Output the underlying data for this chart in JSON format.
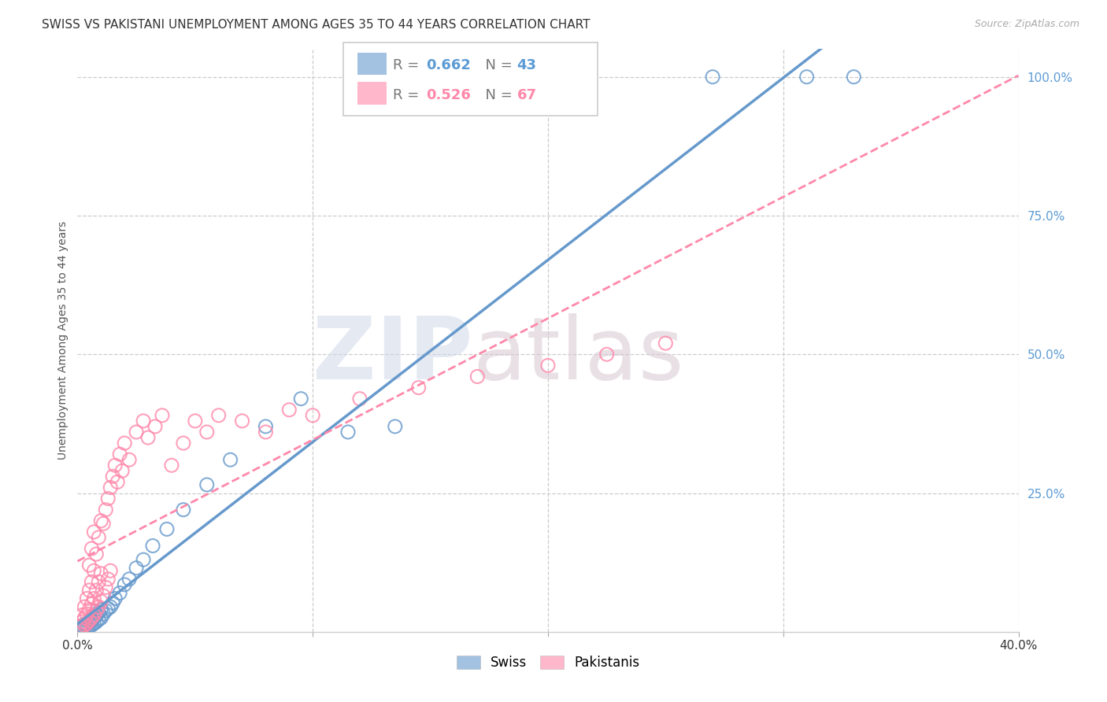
{
  "title": "SWISS VS PAKISTANI UNEMPLOYMENT AMONG AGES 35 TO 44 YEARS CORRELATION CHART",
  "source": "Source: ZipAtlas.com",
  "ylabel": "Unemployment Among Ages 35 to 44 years",
  "xlim": [
    0.0,
    0.4
  ],
  "ylim": [
    0.0,
    1.05
  ],
  "watermark_zip": "ZIP",
  "watermark_atlas": "atlas",
  "swiss_color": "#6699cc",
  "pakistani_color": "#ff88aa",
  "swiss_R": 0.662,
  "swiss_N": 43,
  "pakistani_R": 0.526,
  "pakistani_N": 67,
  "swiss_x": [
    0.001,
    0.001,
    0.002,
    0.002,
    0.003,
    0.003,
    0.004,
    0.004,
    0.005,
    0.005,
    0.006,
    0.006,
    0.007,
    0.007,
    0.008,
    0.008,
    0.009,
    0.009,
    0.01,
    0.01,
    0.011,
    0.012,
    0.013,
    0.014,
    0.015,
    0.016,
    0.018,
    0.02,
    0.022,
    0.025,
    0.028,
    0.032,
    0.038,
    0.045,
    0.055,
    0.065,
    0.08,
    0.095,
    0.115,
    0.135,
    0.27,
    0.31,
    0.33
  ],
  "swiss_y": [
    0.003,
    0.006,
    0.005,
    0.01,
    0.008,
    0.014,
    0.006,
    0.012,
    0.01,
    0.018,
    0.012,
    0.02,
    0.015,
    0.025,
    0.018,
    0.03,
    0.022,
    0.035,
    0.025,
    0.04,
    0.032,
    0.038,
    0.042,
    0.045,
    0.052,
    0.06,
    0.07,
    0.085,
    0.095,
    0.115,
    0.13,
    0.155,
    0.185,
    0.22,
    0.265,
    0.31,
    0.37,
    0.42,
    0.36,
    0.37,
    1.0,
    1.0,
    1.0
  ],
  "pak_x": [
    0.001,
    0.001,
    0.002,
    0.002,
    0.002,
    0.003,
    0.003,
    0.003,
    0.004,
    0.004,
    0.004,
    0.005,
    0.005,
    0.005,
    0.005,
    0.006,
    0.006,
    0.006,
    0.006,
    0.007,
    0.007,
    0.007,
    0.007,
    0.008,
    0.008,
    0.008,
    0.009,
    0.009,
    0.009,
    0.01,
    0.01,
    0.01,
    0.011,
    0.011,
    0.012,
    0.012,
    0.013,
    0.013,
    0.014,
    0.014,
    0.015,
    0.016,
    0.017,
    0.018,
    0.019,
    0.02,
    0.022,
    0.025,
    0.028,
    0.03,
    0.033,
    0.036,
    0.04,
    0.045,
    0.05,
    0.055,
    0.06,
    0.07,
    0.08,
    0.09,
    0.1,
    0.12,
    0.145,
    0.17,
    0.2,
    0.225,
    0.25
  ],
  "pak_y": [
    0.004,
    0.01,
    0.008,
    0.018,
    0.03,
    0.012,
    0.025,
    0.045,
    0.015,
    0.032,
    0.06,
    0.02,
    0.04,
    0.075,
    0.12,
    0.025,
    0.05,
    0.09,
    0.15,
    0.03,
    0.06,
    0.11,
    0.18,
    0.038,
    0.075,
    0.14,
    0.045,
    0.09,
    0.17,
    0.055,
    0.105,
    0.2,
    0.065,
    0.195,
    0.08,
    0.22,
    0.095,
    0.24,
    0.11,
    0.26,
    0.28,
    0.3,
    0.27,
    0.32,
    0.29,
    0.34,
    0.31,
    0.36,
    0.38,
    0.35,
    0.37,
    0.39,
    0.3,
    0.34,
    0.38,
    0.36,
    0.39,
    0.38,
    0.36,
    0.4,
    0.39,
    0.42,
    0.44,
    0.46,
    0.48,
    0.5,
    0.52
  ],
  "grid_color": "#cccccc",
  "background_color": "#ffffff",
  "title_fontsize": 11,
  "axis_label_fontsize": 10,
  "tick_fontsize": 11,
  "legend_fontsize": 13
}
